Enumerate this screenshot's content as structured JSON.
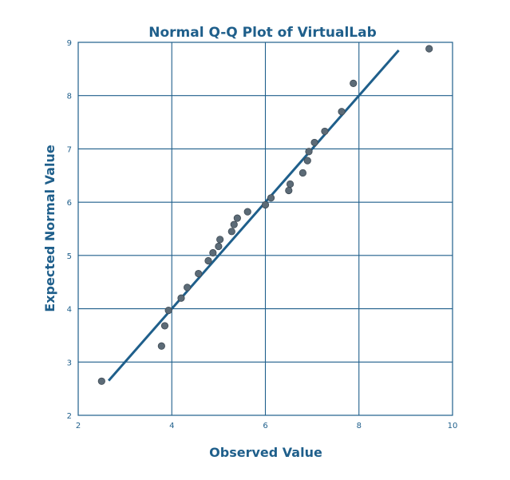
{
  "chart_data": {
    "type": "scatter",
    "title": "Normal Q-Q Plot of VirtualLab",
    "xlabel": "Observed Value",
    "ylabel": "Expected Normal Value",
    "xlim": [
      2,
      10
    ],
    "ylim": [
      2,
      9
    ],
    "xticks": [
      2,
      4,
      6,
      8,
      10
    ],
    "yticks": [
      2,
      3,
      4,
      5,
      6,
      7,
      8,
      9
    ],
    "grid": true,
    "points": [
      {
        "x": 2.5,
        "y": 2.64
      },
      {
        "x": 3.78,
        "y": 3.3
      },
      {
        "x": 3.85,
        "y": 3.68
      },
      {
        "x": 3.93,
        "y": 3.97
      },
      {
        "x": 4.2,
        "y": 4.2
      },
      {
        "x": 4.33,
        "y": 4.4
      },
      {
        "x": 4.57,
        "y": 4.66
      },
      {
        "x": 4.78,
        "y": 4.9
      },
      {
        "x": 4.88,
        "y": 5.05
      },
      {
        "x": 5.0,
        "y": 5.17
      },
      {
        "x": 5.03,
        "y": 5.3
      },
      {
        "x": 5.28,
        "y": 5.45
      },
      {
        "x": 5.33,
        "y": 5.58
      },
      {
        "x": 5.4,
        "y": 5.7
      },
      {
        "x": 5.62,
        "y": 5.82
      },
      {
        "x": 6.0,
        "y": 5.95
      },
      {
        "x": 6.12,
        "y": 6.08
      },
      {
        "x": 6.5,
        "y": 6.22
      },
      {
        "x": 6.53,
        "y": 6.34
      },
      {
        "x": 6.8,
        "y": 6.55
      },
      {
        "x": 6.9,
        "y": 6.78
      },
      {
        "x": 6.93,
        "y": 6.95
      },
      {
        "x": 7.05,
        "y": 7.12
      },
      {
        "x": 7.27,
        "y": 7.33
      },
      {
        "x": 7.63,
        "y": 7.7
      },
      {
        "x": 7.88,
        "y": 8.23
      },
      {
        "x": 9.5,
        "y": 8.88
      }
    ],
    "reference_line": {
      "x1": 2.65,
      "y1": 2.65,
      "x2": 8.85,
      "y2": 8.85
    }
  }
}
